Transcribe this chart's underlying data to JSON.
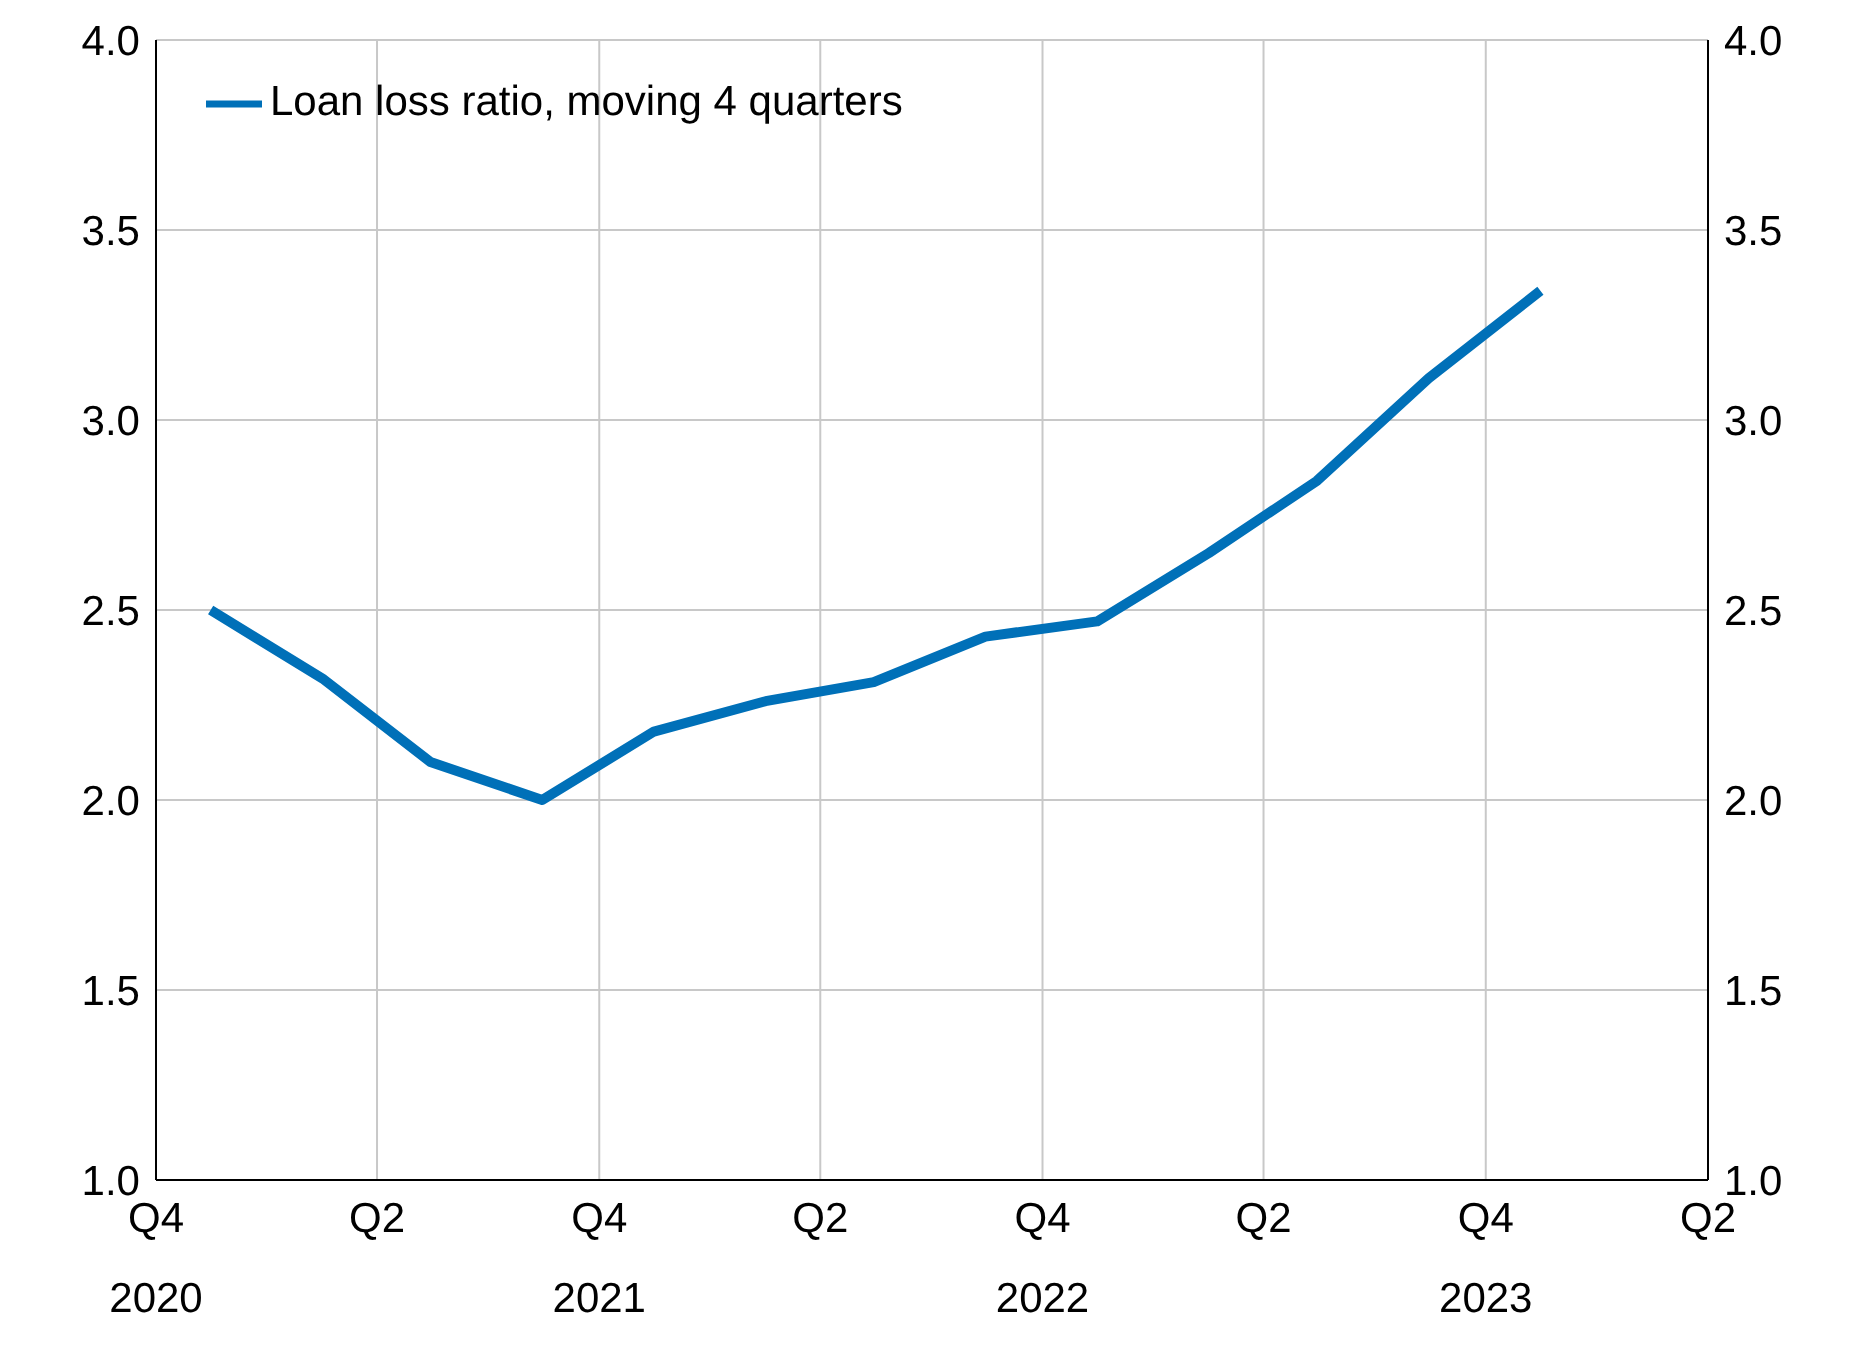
{
  "chart_data": {
    "type": "line",
    "x": [
      "2020-11-15",
      "2021-02-15",
      "2021-05-15",
      "2021-08-15",
      "2021-11-15",
      "2022-02-15",
      "2022-05-15",
      "2022-08-15",
      "2022-11-15",
      "2023-02-15",
      "2023-05-15",
      "2023-08-15",
      "2023-11-15"
    ],
    "series": [
      {
        "name": "Loan loss ratio, moving 4 quarters",
        "color": "#0070b8",
        "values": [
          2.5,
          2.32,
          2.1,
          2.0,
          2.18,
          2.26,
          2.31,
          2.43,
          2.47,
          2.65,
          2.84,
          3.11,
          3.34
        ]
      }
    ],
    "xlim": [
      "2020-10-01",
      "2024-04-01"
    ],
    "xticks": [
      {
        "value": "2020-10-01",
        "label": "Q4\n2020"
      },
      {
        "value": "2021-04-01",
        "label": "Q2"
      },
      {
        "value": "2021-10-01",
        "label": "Q4\n2021"
      },
      {
        "value": "2022-04-01",
        "label": "Q2"
      },
      {
        "value": "2022-10-01",
        "label": "Q4\n2022"
      },
      {
        "value": "2023-04-01",
        "label": "Q2"
      },
      {
        "value": "2023-10-01",
        "label": "Q4\n2023"
      },
      {
        "value": "2024-04-01",
        "label": "Q2"
      }
    ],
    "ylim": [
      1.0,
      4.0
    ],
    "yticks": [
      {
        "value": 1.0,
        "label": "1.0"
      },
      {
        "value": 1.5,
        "label": "1.5"
      },
      {
        "value": 2.0,
        "label": "2.0"
      },
      {
        "value": 2.5,
        "label": "2.5"
      },
      {
        "value": 3.0,
        "label": "3.0"
      },
      {
        "value": 3.5,
        "label": "3.5"
      },
      {
        "value": 4.0,
        "label": "4.0"
      }
    ],
    "y2lim": [
      1.0,
      4.0
    ],
    "y2ticks": [
      {
        "value": 1.0,
        "label": "1.0"
      },
      {
        "value": 1.5,
        "label": "1.5"
      },
      {
        "value": 2.0,
        "label": "2.0"
      },
      {
        "value": 2.5,
        "label": "2.5"
      },
      {
        "value": 3.0,
        "label": "3.0"
      },
      {
        "value": 3.5,
        "label": "3.5"
      },
      {
        "value": 4.0,
        "label": "4.0"
      }
    ],
    "grid": true,
    "legend": "top left",
    "line_style": "solid",
    "marker": "none"
  }
}
